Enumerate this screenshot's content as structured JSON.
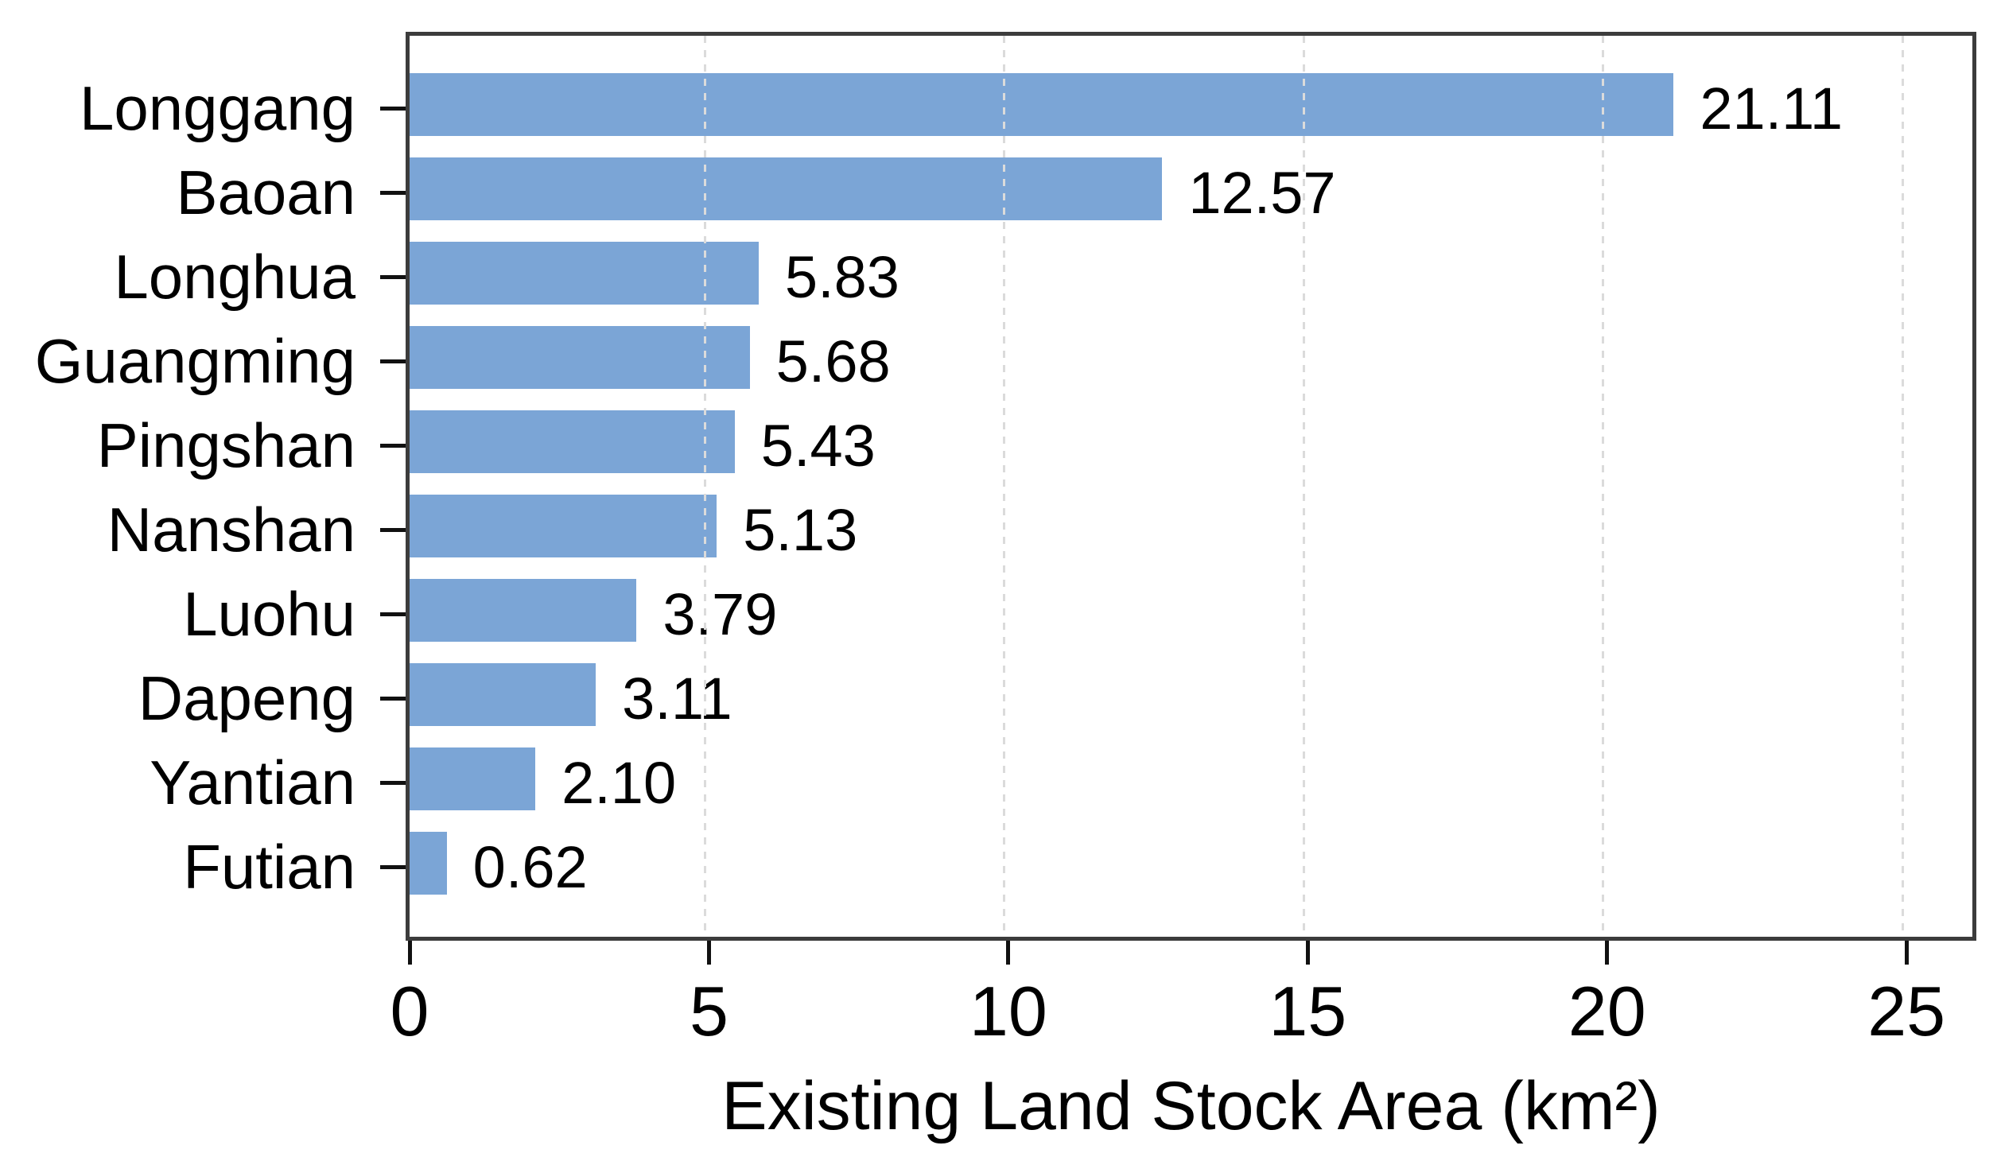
{
  "chart_data": {
    "type": "bar",
    "orientation": "horizontal",
    "title": "",
    "xlabel": "Existing Land Stock Area (km²)",
    "ylabel": "",
    "categories": [
      "Longgang",
      "Baoan",
      "Longhua",
      "Guangming",
      "Pingshan",
      "Nanshan",
      "Luohu",
      "Dapeng",
      "Yantian",
      "Futian"
    ],
    "values": [
      21.11,
      12.57,
      5.83,
      5.68,
      5.43,
      5.13,
      3.79,
      3.11,
      2.1,
      0.62
    ],
    "value_labels": [
      "21.11",
      "12.57",
      "5.83",
      "5.68",
      "5.43",
      "5.13",
      "3.79",
      "3.11",
      "2.10",
      "0.62"
    ],
    "x_ticks": [
      0,
      5,
      10,
      15,
      20,
      25
    ],
    "x_tick_labels": [
      "0",
      "5",
      "10",
      "15",
      "20",
      "25"
    ],
    "xlim": [
      0,
      26.1
    ],
    "grid": "vertical-dashed-at-major-ticks",
    "legend": "none",
    "bar_color": "#7BA5D6",
    "spine_color": "#3C3C3C",
    "tick_color": "#111111",
    "grid_color": "#DBDBDB",
    "text_color": "#000000",
    "background_color": "#FFFFFF"
  }
}
